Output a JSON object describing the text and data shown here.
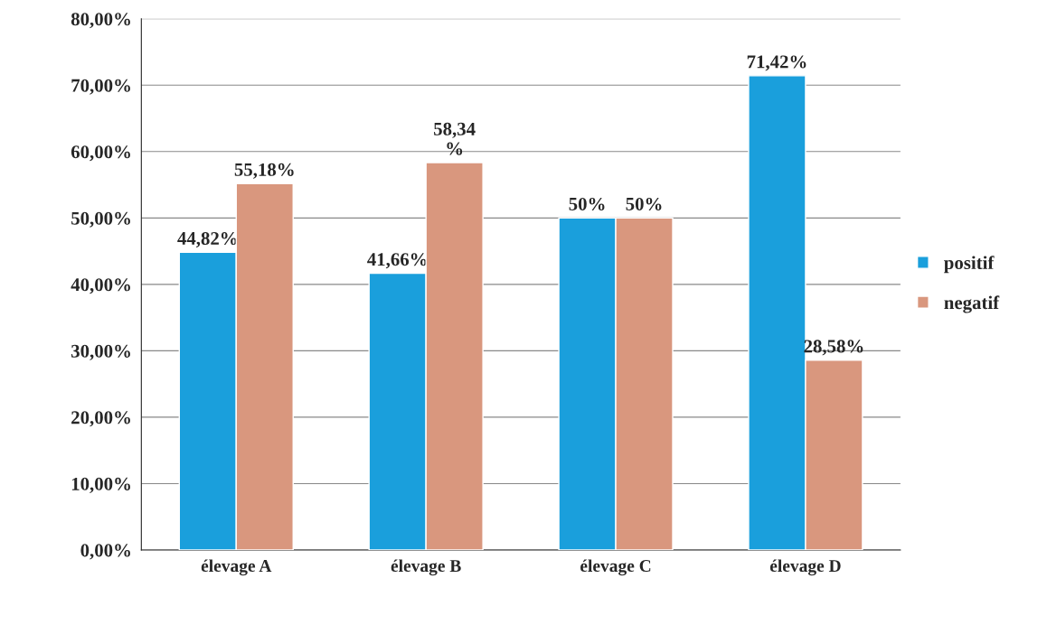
{
  "chart_data": {
    "type": "bar",
    "categories": [
      "élevage A",
      "élevage B",
      "élevage C",
      "élevage D"
    ],
    "series": [
      {
        "name": "positif",
        "color": "#1a9fdc",
        "values": [
          44.82,
          41.66,
          50,
          71.42
        ],
        "value_labels": [
          "44,82%",
          "41,66%",
          "50%",
          "71,42%"
        ]
      },
      {
        "name": "negatif",
        "color": "#d9977e",
        "values": [
          55.18,
          58.34,
          50,
          28.58
        ],
        "value_labels": [
          "55,18%",
          "58,34\n%",
          "50%",
          "28,58%"
        ]
      }
    ],
    "ylim": [
      0,
      80
    ],
    "yticks": [
      {
        "value": 0,
        "label": "0,00%"
      },
      {
        "value": 10,
        "label": "10,00%"
      },
      {
        "value": 20,
        "label": "20,00%"
      },
      {
        "value": 30,
        "label": "30,00%"
      },
      {
        "value": 40,
        "label": "40,00%"
      },
      {
        "value": 50,
        "label": "50,00%"
      },
      {
        "value": 60,
        "label": "60,00%"
      },
      {
        "value": 70,
        "label": "70,00%"
      },
      {
        "value": 80,
        "label": "80,00%"
      }
    ],
    "grid": "y",
    "legend": "right"
  }
}
